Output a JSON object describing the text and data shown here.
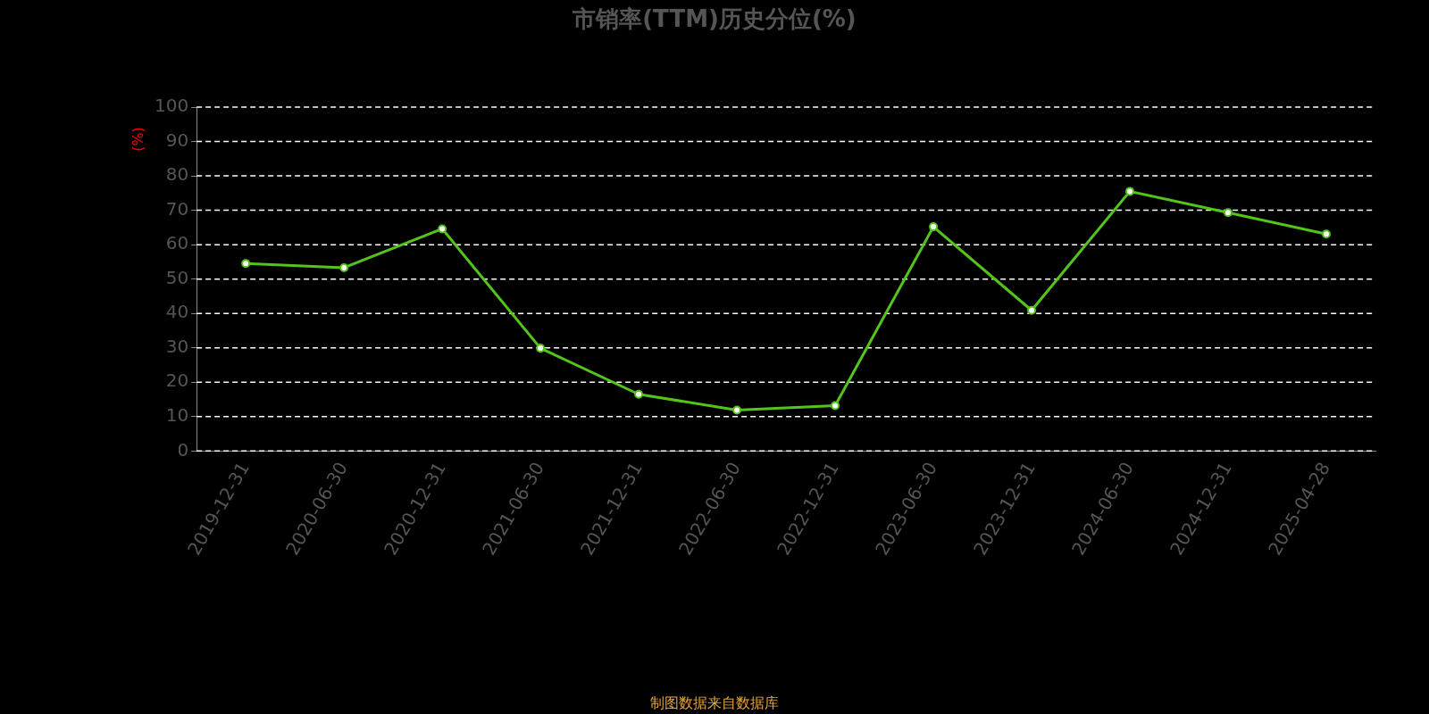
{
  "chart_data": {
    "type": "line",
    "title": "市销率(TTM)历史分位(%)",
    "ylabel": "(%)",
    "categories": [
      "2019-12-31",
      "2020-06-30",
      "2020-12-31",
      "2021-06-30",
      "2021-12-31",
      "2022-06-30",
      "2022-12-31",
      "2023-06-30",
      "2023-12-31",
      "2024-06-30",
      "2024-12-31",
      "2025-04-28"
    ],
    "series": [
      {
        "color": "#52c41a",
        "values": [
          54.5,
          53.3,
          64.6,
          29.9,
          16.5,
          11.9,
          13.2,
          65.2,
          40.9,
          75.5,
          69.3,
          63.1
        ]
      }
    ],
    "ylim": [
      0,
      100
    ],
    "yticks": [
      0,
      10,
      20,
      30,
      40,
      50,
      60,
      70,
      80,
      90,
      100
    ],
    "grid": "y",
    "marker": "circle",
    "line_style": "solid",
    "annotations": [
      "制图数据来自数据库"
    ]
  }
}
